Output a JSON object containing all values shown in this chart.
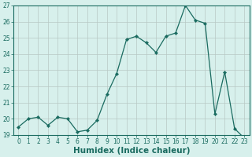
{
  "title": "",
  "xlabel": "Humidex (Indice chaleur)",
  "ylabel": "",
  "x": [
    0,
    1,
    2,
    3,
    4,
    5,
    6,
    7,
    8,
    9,
    10,
    11,
    12,
    13,
    14,
    15,
    16,
    17,
    18,
    19,
    20,
    21,
    22,
    23
  ],
  "y": [
    19.5,
    20.0,
    20.1,
    19.6,
    20.1,
    20.0,
    19.2,
    19.3,
    19.9,
    21.5,
    22.8,
    24.9,
    25.1,
    24.7,
    24.1,
    25.1,
    25.3,
    27.0,
    26.1,
    25.9,
    20.3,
    22.9,
    19.4,
    18.8
  ],
  "line_color": "#1a6b60",
  "marker": "D",
  "marker_size": 2.2,
  "bg_color": "#d7f0ec",
  "grid_color": "#b8c8c4",
  "ylim_min": 19,
  "ylim_max": 27,
  "yticks": [
    19,
    20,
    21,
    22,
    23,
    24,
    25,
    26,
    27
  ],
  "xticks": [
    0,
    1,
    2,
    3,
    4,
    5,
    6,
    7,
    8,
    9,
    10,
    11,
    12,
    13,
    14,
    15,
    16,
    17,
    18,
    19,
    20,
    21,
    22,
    23
  ],
  "tick_label_fontsize": 5.5,
  "xlabel_fontsize": 7.5,
  "axis_color": "#1a6b60",
  "spine_color": "#1a6b60",
  "linewidth": 0.9
}
